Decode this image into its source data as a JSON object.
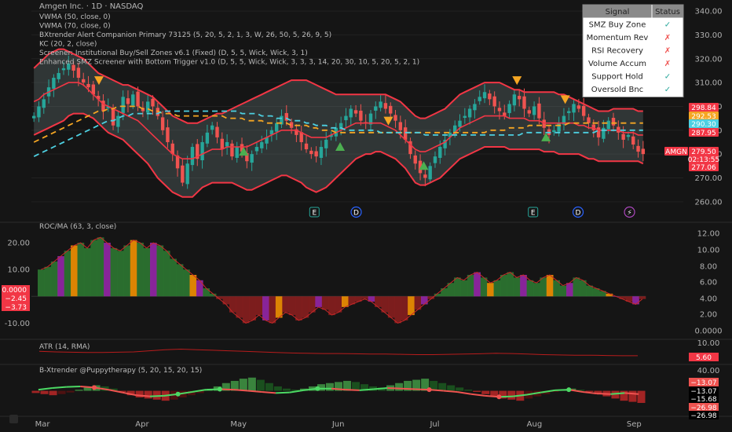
{
  "header": {
    "title": "Amgen Inc. · 1D · NASDAQ",
    "indicators": [
      "VWMA (50, close, 0)",
      "VWMA (70, close, 0)",
      "BXtrender Alert Companion Primary 73125 (5, 20, 5, 2, 1, 3, W, 26, 50, 5, 26, 9, 5)",
      "KC (20, 2, close)",
      "Screener: Institutional Buy/Sell Zones v6.1 (Fixed) (D, 5, 5, Wick, Wick, 3, 1)",
      "Enhanced SMZ Screener with Bottom Trigger v1.0 (D, 5, 5, Wick, Wick, 3, 3, 3, 14, 20, 30, 10, 5, 20, 5, 2, 1)"
    ]
  },
  "signal_table": {
    "headers": [
      "Signal",
      "Status"
    ],
    "rows": [
      {
        "signal": "SMZ Buy Zone",
        "status": "✓",
        "ok": true
      },
      {
        "signal": "Momentum Rev",
        "status": "✗",
        "ok": false
      },
      {
        "signal": "RSI Recovery",
        "status": "✗",
        "ok": false
      },
      {
        "signal": "Volume Accum",
        "status": "✗",
        "ok": false
      },
      {
        "signal": "Support Hold",
        "status": "✓",
        "ok": true
      },
      {
        "signal": "Oversold Bnc",
        "status": "✓",
        "ok": true
      }
    ]
  },
  "events": [
    {
      "x": "May 28",
      "label": "E",
      "kind": "earnings"
    },
    {
      "x": "Jun 10",
      "label": "D",
      "kind": "dividend"
    },
    {
      "x": "Aug 4",
      "label": "E",
      "kind": "earnings"
    },
    {
      "x": "Aug 18",
      "label": "D",
      "kind": "dividend"
    },
    {
      "x": "Sep 3",
      "label": "⚡",
      "kind": "split"
    }
  ],
  "colors": {
    "bull": "#26a69a",
    "bear": "#ef5350",
    "keltner": "#f23645",
    "vwma50": "#f5a623",
    "vwma70": "#4dd0e1",
    "green_hist": "#4caf50",
    "purple_hist": "#9c27b0",
    "orange_hist": "#ff9800"
  },
  "chart_data": [
    {
      "type": "candlestick",
      "name": "price",
      "symbol": "AMGN",
      "ylim": [
        255,
        342
      ],
      "yticks": [
        260,
        270,
        280,
        290,
        300,
        310,
        320,
        330,
        340
      ],
      "x_labels": [
        "Mar",
        "Apr",
        "May",
        "Jun",
        "Jul",
        "Aug",
        "Sep"
      ],
      "x_start": "Mar 1",
      "close_path": [
        296,
        300,
        303,
        308,
        312,
        314,
        316,
        318,
        315,
        312,
        310,
        308,
        305,
        303,
        298,
        300,
        292,
        296,
        304,
        301,
        305,
        300,
        298,
        302,
        300,
        296,
        290,
        285,
        280,
        274,
        268,
        276,
        283,
        278,
        285,
        289,
        292,
        287,
        282,
        285,
        279,
        283,
        281,
        277,
        280,
        283,
        285,
        287,
        290,
        293,
        296,
        294,
        291,
        288,
        285,
        282,
        280,
        279,
        283,
        286,
        288,
        291,
        293,
        296,
        299,
        297,
        294,
        293,
        297,
        300,
        302,
        299,
        297,
        294,
        290,
        286,
        280,
        276,
        272,
        270,
        275,
        279,
        283,
        286,
        289,
        292,
        294,
        296,
        299,
        301,
        304,
        306,
        303,
        300,
        298,
        296,
        301,
        305,
        303,
        299,
        297,
        300,
        295,
        291,
        288,
        290,
        293,
        296,
        298,
        301,
        299,
        296,
        293,
        290,
        287,
        291,
        294,
        292,
        289,
        286,
        288,
        284,
        281,
        280
      ],
      "keltner_upper": [
        316,
        318,
        320,
        322,
        323,
        324,
        324,
        323,
        322,
        321,
        320,
        318,
        316,
        314,
        313,
        312,
        311,
        310,
        309,
        309,
        308,
        307,
        306,
        305,
        304,
        302,
        300,
        298,
        296,
        295,
        294,
        293,
        293,
        293,
        294,
        295,
        296,
        297,
        297,
        298,
        299,
        300,
        301,
        302,
        303,
        304,
        305,
        306,
        307,
        308,
        309,
        310,
        311,
        311,
        311,
        311,
        310,
        309,
        308,
        307,
        306,
        305,
        305,
        305,
        305,
        305,
        305,
        305,
        305,
        305,
        305,
        305,
        304,
        303,
        302,
        300,
        298,
        296,
        295,
        295,
        296,
        297,
        298,
        299,
        301,
        303,
        305,
        306,
        307,
        308,
        309,
        310,
        310,
        310,
        310,
        309,
        308,
        307,
        307,
        306,
        306,
        306,
        306,
        306,
        306,
        306,
        305,
        305,
        304,
        303,
        302,
        301,
        300,
        299,
        298,
        298,
        298,
        299,
        299,
        299,
        299,
        299,
        298,
        298
      ],
      "keltner_mid": [
        302,
        303,
        305,
        306,
        307,
        308,
        309,
        310,
        310,
        310,
        309,
        307,
        305,
        303,
        301,
        300,
        299,
        298,
        297,
        296,
        295,
        294,
        292,
        290,
        288,
        286,
        284,
        282,
        280,
        279,
        278,
        278,
        278,
        279,
        280,
        281,
        282,
        282,
        282,
        283,
        283,
        283,
        283,
        283,
        284,
        285,
        286,
        287,
        288,
        289,
        290,
        290,
        290,
        290,
        289,
        288,
        287,
        287,
        287,
        287,
        288,
        289,
        290,
        291,
        292,
        293,
        293,
        293,
        293,
        293,
        293,
        292,
        291,
        290,
        288,
        286,
        284,
        282,
        281,
        281,
        282,
        283,
        284,
        285,
        287,
        289,
        291,
        292,
        293,
        294,
        295,
        296,
        296,
        296,
        296,
        296,
        295,
        295,
        295,
        295,
        294,
        294,
        294,
        293,
        293,
        293,
        293,
        293,
        293,
        293,
        292,
        292,
        291,
        291,
        290,
        290,
        290,
        290,
        290,
        289,
        289,
        289,
        288,
        288
      ],
      "keltner_lower": [
        288,
        289,
        290,
        291,
        292,
        293,
        294,
        296,
        297,
        297,
        297,
        296,
        295,
        293,
        291,
        289,
        288,
        287,
        286,
        284,
        282,
        280,
        278,
        276,
        273,
        270,
        268,
        266,
        264,
        263,
        262,
        262,
        262,
        264,
        266,
        267,
        268,
        268,
        268,
        268,
        268,
        267,
        266,
        265,
        265,
        266,
        267,
        268,
        269,
        270,
        271,
        271,
        270,
        269,
        268,
        266,
        265,
        264,
        265,
        266,
        268,
        270,
        272,
        274,
        276,
        278,
        279,
        280,
        280,
        281,
        281,
        280,
        279,
        278,
        276,
        274,
        271,
        268,
        267,
        267,
        268,
        269,
        270,
        272,
        274,
        276,
        278,
        279,
        280,
        281,
        282,
        283,
        283,
        283,
        283,
        283,
        282,
        282,
        282,
        282,
        282,
        282,
        282,
        281,
        281,
        281,
        280,
        280,
        280,
        280,
        280,
        279,
        278,
        278,
        277,
        277,
        277,
        277,
        277,
        277,
        277,
        277,
        277,
        276
      ],
      "vwma50": [
        285,
        286,
        287,
        288,
        289,
        290,
        291,
        292,
        293,
        294,
        295,
        296,
        297,
        298,
        298,
        299,
        299,
        300,
        300,
        300,
        300,
        300,
        299,
        299,
        298,
        298,
        297,
        297,
        297,
        296,
        296,
        296,
        296,
        296,
        296,
        296,
        296,
        296,
        296,
        295,
        295,
        295,
        295,
        294,
        294,
        294,
        294,
        293,
        293,
        293,
        293,
        293,
        292,
        292,
        292,
        292,
        291,
        291,
        290,
        290,
        290,
        289,
        289,
        289,
        289,
        289,
        289,
        289,
        289,
        289,
        289,
        289,
        289,
        289,
        289,
        289,
        289,
        289,
        289,
        289,
        289,
        289,
        289,
        289,
        289,
        289,
        289,
        289,
        289,
        289,
        289,
        289,
        290,
        290,
        290,
        290,
        291,
        291,
        291,
        291,
        292,
        292,
        292,
        292,
        292,
        292,
        292,
        292,
        293,
        293,
        293,
        293,
        293,
        293,
        293,
        293,
        293,
        293,
        293,
        293,
        293,
        293,
        293,
        293
      ],
      "vwma70": [
        279,
        280,
        281,
        282,
        283,
        284,
        285,
        286,
        287,
        288,
        289,
        290,
        291,
        292,
        293,
        294,
        294,
        295,
        296,
        296,
        297,
        297,
        297,
        297,
        297,
        297,
        298,
        298,
        298,
        298,
        298,
        298,
        298,
        298,
        298,
        298,
        298,
        298,
        298,
        298,
        298,
        298,
        297,
        297,
        297,
        297,
        296,
        296,
        296,
        295,
        295,
        295,
        294,
        294,
        294,
        293,
        293,
        292,
        292,
        292,
        291,
        291,
        291,
        290,
        290,
        290,
        290,
        290,
        290,
        290,
        289,
        289,
        289,
        289,
        289,
        289,
        289,
        289,
        289,
        288,
        288,
        288,
        288,
        288,
        288,
        288,
        288,
        288,
        288,
        288,
        288,
        288,
        288,
        288,
        288,
        288,
        288,
        288,
        288,
        289,
        289,
        289,
        289,
        289,
        289,
        289,
        289,
        289,
        289,
        289,
        289,
        289,
        289,
        289,
        290,
        290,
        290,
        290,
        290,
        290,
        290,
        290,
        290,
        290
      ],
      "signals_buy": [
        {
          "x": "May 6",
          "y": 281
        },
        {
          "x": "Jun 5",
          "y": 283
        },
        {
          "x": "Jul 1",
          "y": 275
        },
        {
          "x": "Aug 8",
          "y": 287
        }
      ],
      "signals_sell": [
        {
          "x": "Mar 22",
          "y": 311
        },
        {
          "x": "Jun 20",
          "y": 294
        },
        {
          "x": "Jul 30",
          "y": 311
        },
        {
          "x": "Aug 14",
          "y": 303
        }
      ],
      "price_tags": [
        {
          "label": "298.84",
          "color": "#f23645"
        },
        {
          "label": "292.53",
          "color": "#f5a623"
        },
        {
          "label": "290.30",
          "color": "#4dd0e1"
        },
        {
          "label": "287.95",
          "color": "#f23645"
        },
        {
          "label": "AMGN",
          "color": "#f23645"
        },
        {
          "label": "279.50",
          "color": "#f23645"
        },
        {
          "label": "02:13:55",
          "color": "#f23645"
        },
        {
          "label": "277.06",
          "color": "#f23645"
        }
      ],
      "tag_values": [
        298.84,
        292.53,
        290.3,
        287.95,
        279.5,
        279.5,
        279.5,
        277.06
      ]
    },
    {
      "type": "histogram",
      "name": "ROC/MA (63, 3, close)",
      "ylim": [
        -14,
        25
      ],
      "left_ticks": [
        20.0,
        10.0,
        -10.0
      ],
      "left_tick_labels": [
        "20.00",
        "10.00",
        "-10.00"
      ],
      "right_ticks_labels": [
        "12.00",
        "10.00",
        "8.00",
        "6.00",
        "4.00",
        "2.00",
        "0.0000"
      ],
      "values": [
        10,
        11,
        13,
        15,
        17,
        19,
        20,
        18,
        21,
        22,
        20,
        18,
        17,
        19,
        21,
        20,
        18,
        20,
        19,
        17,
        14,
        12,
        10,
        8,
        6,
        3,
        1,
        -1,
        -3,
        -6,
        -8,
        -10,
        -9,
        -7,
        -9,
        -10,
        -8,
        -6,
        -7,
        -9,
        -8,
        -6,
        -4,
        -5,
        -7,
        -6,
        -4,
        -3,
        -2,
        -1,
        -2,
        -4,
        -6,
        -8,
        -10,
        -9,
        -7,
        -5,
        -3,
        -1,
        1,
        3,
        5,
        7,
        6,
        8,
        9,
        7,
        5,
        6,
        8,
        9,
        7,
        8,
        6,
        5,
        7,
        8,
        6,
        4,
        5,
        7,
        6,
        4,
        3,
        2,
        1,
        0,
        -1,
        -2,
        -3,
        -1
      ],
      "tags": [
        {
          "label": "0.0000",
          "value": 0
        },
        {
          "label": "−2.45",
          "value": -2.45
        },
        {
          "label": "−3.73",
          "value": -3.73
        }
      ]
    },
    {
      "type": "line",
      "name": "ATR (14, RMA)",
      "ylim": [
        3,
        11
      ],
      "right_tick_label": "10.00",
      "values": [
        7.2,
        7.0,
        6.9,
        6.8,
        6.8,
        6.9,
        7.0,
        7.4,
        7.8,
        8.0,
        7.8,
        7.6,
        7.4,
        7.2,
        7.0,
        6.8,
        6.6,
        6.5,
        6.4,
        6.4,
        6.3,
        6.2,
        6.2,
        6.1,
        6.0,
        6.0,
        6.1,
        6.2,
        6.3,
        6.5,
        6.4,
        6.2,
        6.0,
        5.9,
        5.8,
        5.8,
        5.7,
        5.6,
        5.6
      ],
      "tag": "5.60"
    },
    {
      "type": "histogram",
      "name": "B-Xtrender @Puppytherapy (5, 20, 15, 20, 15)",
      "ylim": [
        -32,
        45
      ],
      "right_tick_label": "40.00",
      "values": [
        -4,
        -6,
        -8,
        -6,
        -3,
        2,
        6,
        10,
        8,
        4,
        -2,
        -8,
        -12,
        -14,
        -16,
        -18,
        -16,
        -12,
        -8,
        -4,
        2,
        8,
        14,
        18,
        22,
        24,
        20,
        14,
        8,
        4,
        2,
        4,
        8,
        12,
        14,
        16,
        18,
        16,
        12,
        8,
        6,
        10,
        14,
        18,
        20,
        22,
        18,
        14,
        10,
        6,
        2,
        -2,
        -6,
        -10,
        -14,
        -16,
        -18,
        -14,
        -10,
        -6,
        -2,
        2,
        4,
        2,
        -2,
        -6,
        -10,
        -14,
        -18,
        -20,
        -22
      ],
      "osc": [
        2,
        5,
        7,
        8,
        6,
        2,
        -3,
        -8,
        -10,
        -9,
        -6,
        -2,
        2,
        3,
        2,
        0,
        -2,
        -4,
        -3,
        1,
        4,
        4,
        2,
        1,
        3,
        5,
        4,
        3,
        2,
        0,
        -2,
        -6,
        -9,
        -11,
        -10,
        -7,
        -3,
        1,
        2,
        -2,
        -5,
        -6,
        -4,
        -6
      ],
      "osc_dots": [
        {
          "i": 4,
          "y": 7
        },
        {
          "i": 10,
          "y": -7
        },
        {
          "i": 13,
          "y": -9
        },
        {
          "i": 20,
          "y": 2
        },
        {
          "i": 28,
          "y": 0
        },
        {
          "i": 33,
          "y": -10
        },
        {
          "i": 38,
          "y": 2
        }
      ],
      "tags": [
        {
          "label": "−13.07",
          "value": -13.07,
          "color": "#ef5350"
        },
        {
          "label": "−13.07",
          "value": -13.07,
          "color": "#000000"
        },
        {
          "label": "−15.68",
          "value": -15.68,
          "color": "#000000"
        },
        {
          "label": "−26.98",
          "value": -26.98,
          "color": "#ef5350"
        },
        {
          "label": "−26.98",
          "value": -26.98,
          "color": "#000000"
        }
      ]
    }
  ]
}
